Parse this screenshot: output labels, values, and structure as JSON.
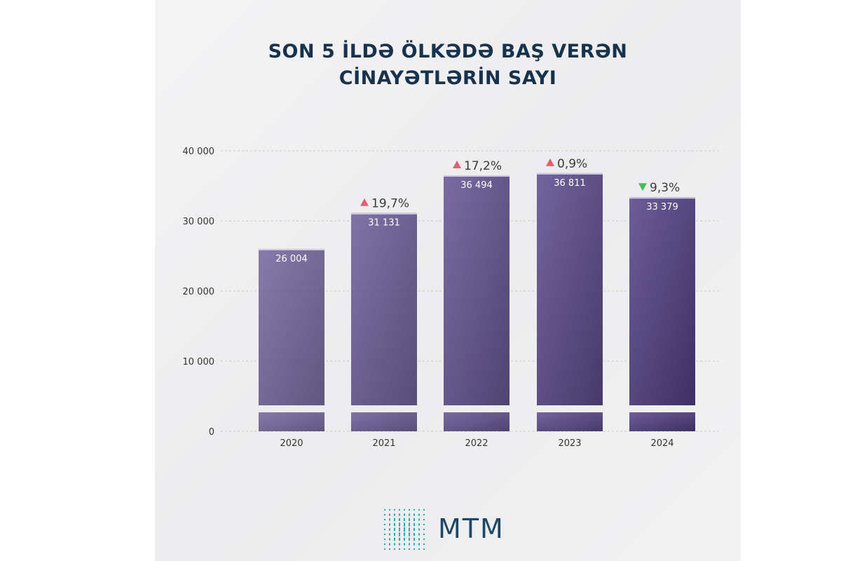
{
  "title_lines": [
    "SON 5 İLDƏ ÖLKƏDƏ BAŞ VERƏN",
    "CİNAYƏTLƏRİN SAYI"
  ],
  "brand": "MTM",
  "colors": {
    "bar_top": "#5a4a86",
    "bar_bottom": "#3b2d63",
    "title": "#17324c",
    "up_arrow": "#e06070",
    "down_arrow": "#3fbf5a",
    "axis_text": "#333333",
    "grid": "#c8c8c8",
    "logo": "#2aa8b0"
  },
  "chart_data": {
    "type": "bar",
    "categories": [
      "2020",
      "2021",
      "2022",
      "2023",
      "2024"
    ],
    "values": [
      26004,
      31131,
      36494,
      36811,
      33379
    ],
    "value_labels": [
      "26 004",
      "31 131",
      "36 494",
      "36 811",
      "33 379"
    ],
    "changes": [
      null,
      {
        "direction": "up",
        "label": "19,7%"
      },
      {
        "direction": "up",
        "label": "17,2%"
      },
      {
        "direction": "up",
        "label": "0,9%"
      },
      {
        "direction": "down",
        "label": "9,3%"
      }
    ],
    "ylim": [
      0,
      40000
    ],
    "yticks": [
      0,
      10000,
      20000,
      30000,
      40000
    ],
    "ytick_labels": [
      "0",
      "10 000",
      "20 000",
      "30 000",
      "40 000"
    ],
    "axis_break": true,
    "grid": true
  }
}
